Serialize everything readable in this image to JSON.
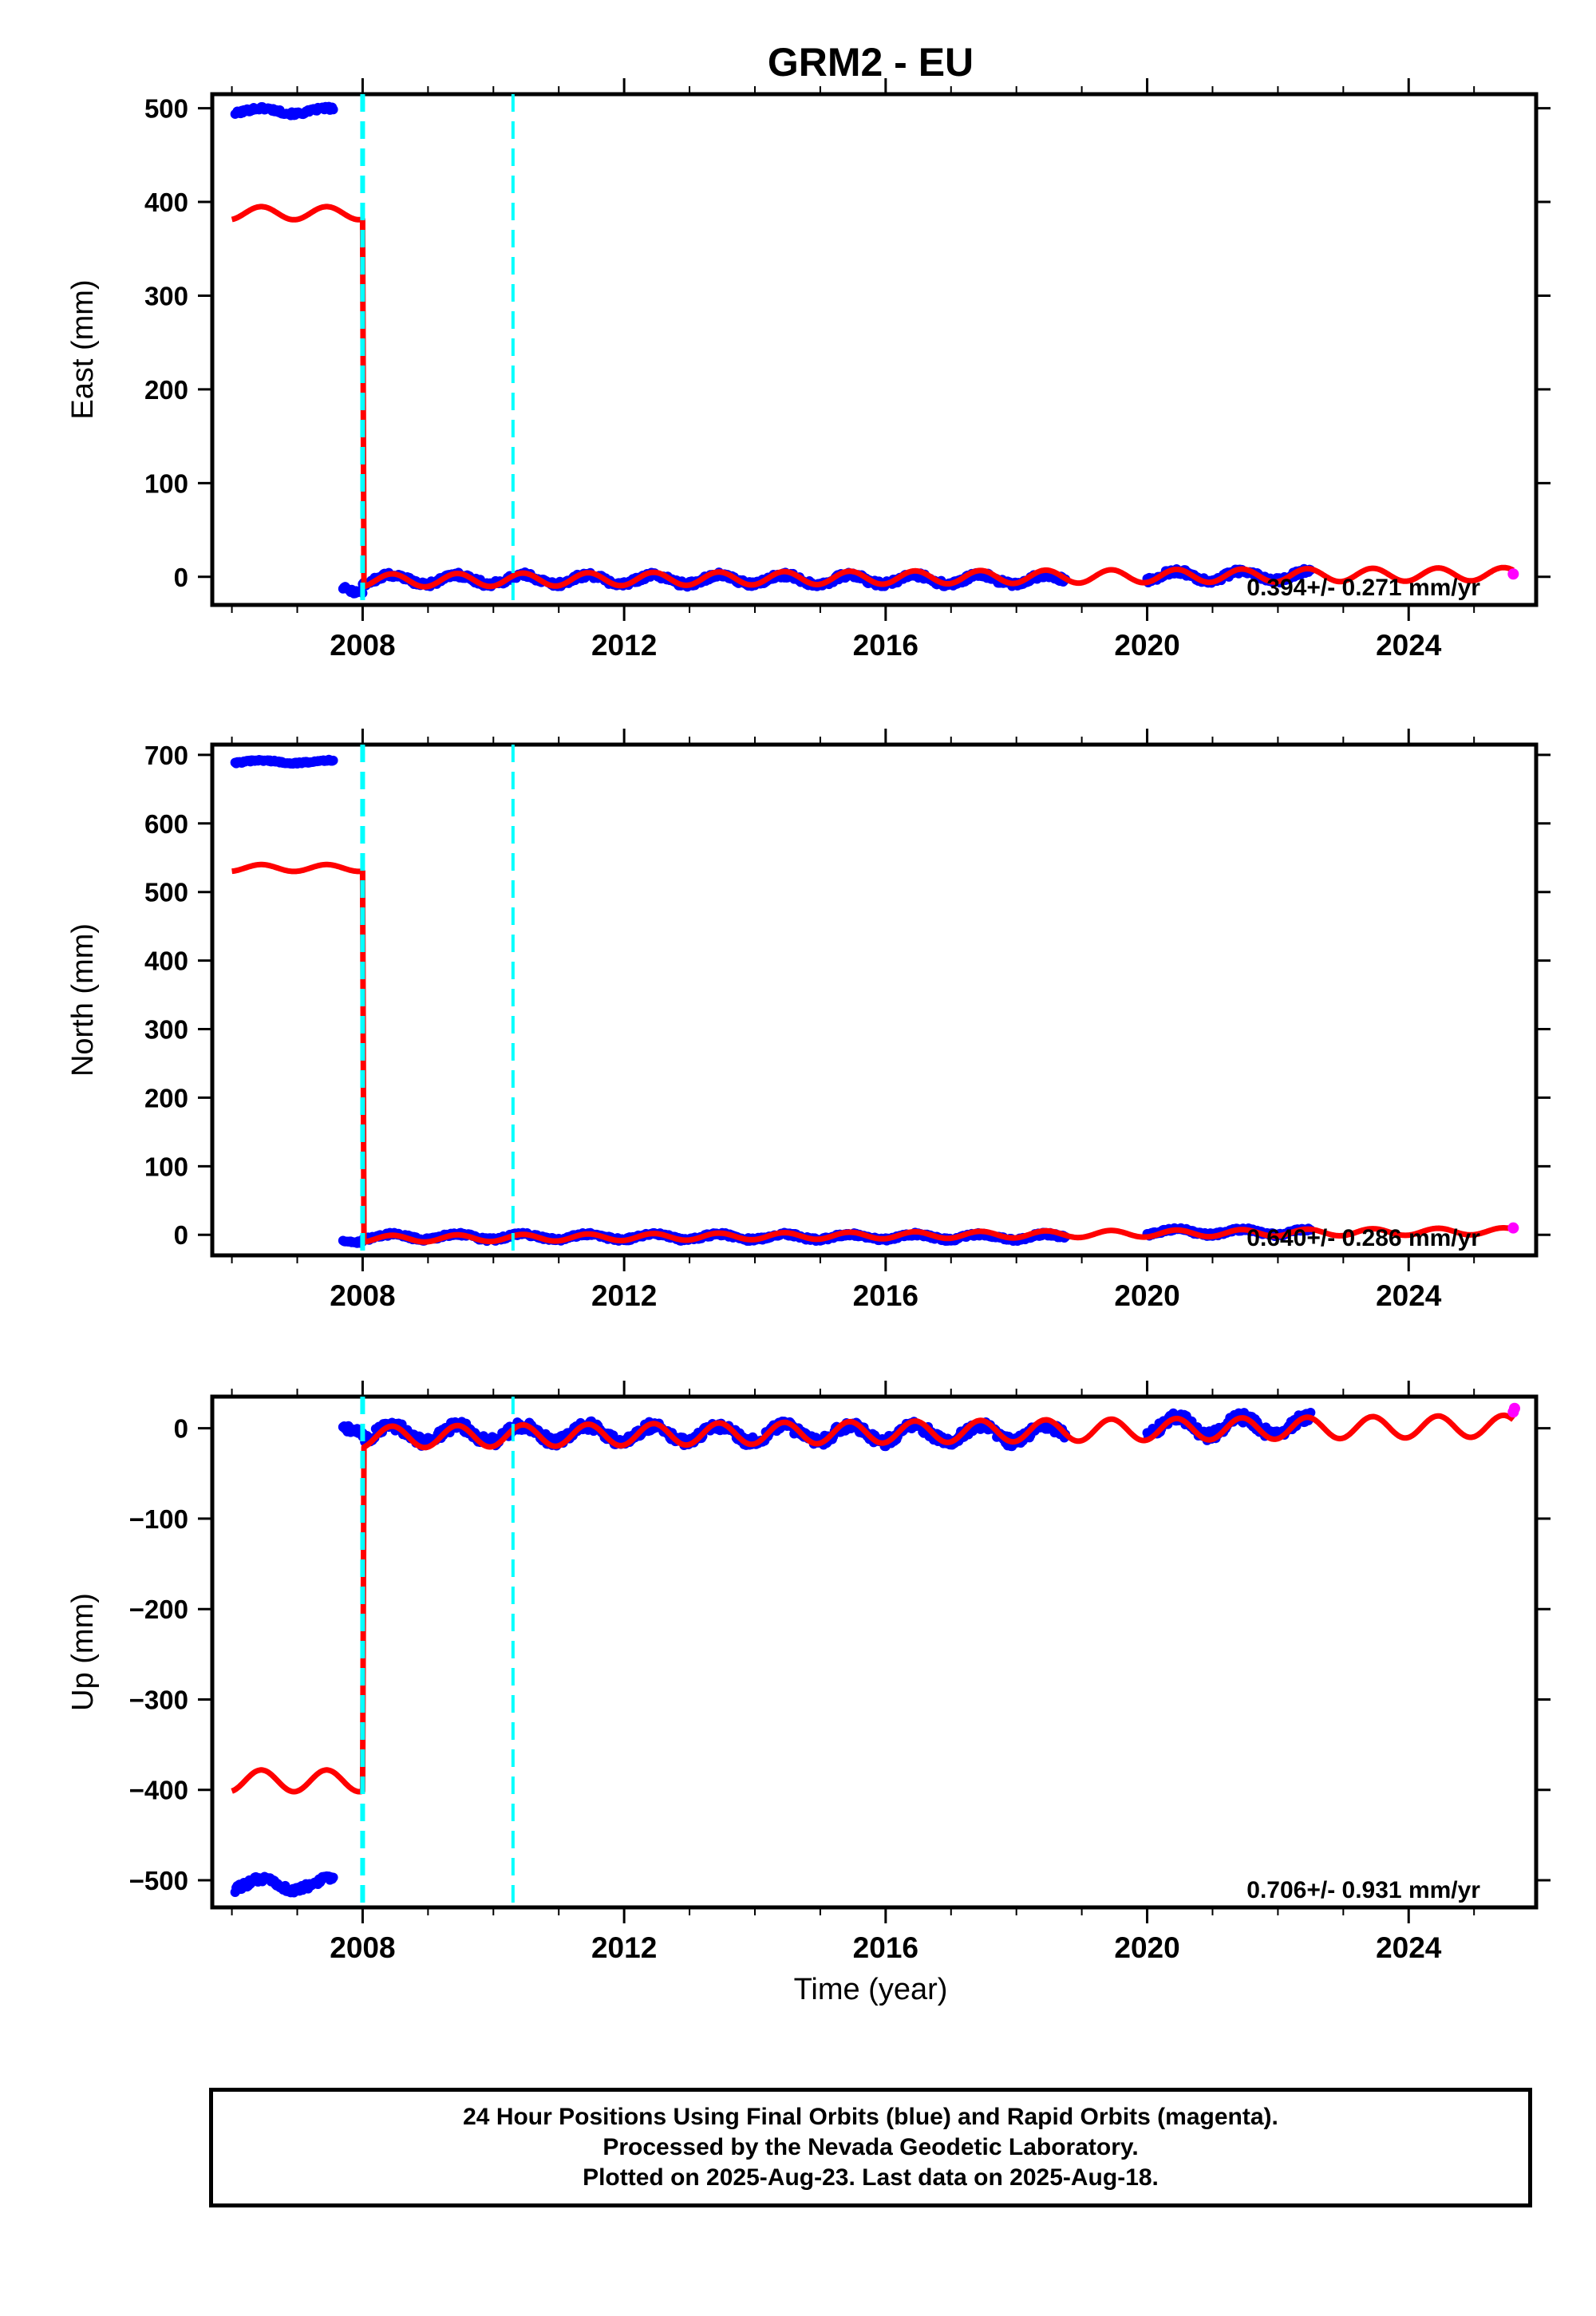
{
  "title": "GRM2 - EU",
  "xlabel": "Time (year)",
  "footer": {
    "line1": "24 Hour Positions Using Final Orbits (blue) and Rapid Orbits (magenta).",
    "line2": "Processed by the Nevada Geodetic Laboratory.",
    "line3": "Plotted on 2025-Aug-23. Last data on 2025-Aug-18."
  },
  "colors": {
    "final_orbits": "#0000ff",
    "rapid_orbits": "#ff00ff",
    "model": "#ff0000",
    "equipment_change": "#00ffff"
  },
  "chart_data": [
    {
      "type": "scatter",
      "component": "East",
      "ylabel": "East (mm)",
      "xlim": [
        2005.7,
        2025.95
      ],
      "ylim": [
        -30,
        515
      ],
      "xticks": [
        2008,
        2012,
        2016,
        2020,
        2024
      ],
      "xtick_labels": [
        "2008",
        "2012",
        "2016",
        "2020",
        "2024"
      ],
      "yticks": [
        0,
        100,
        200,
        300,
        400,
        500
      ],
      "ytick_labels": [
        "0",
        "100",
        "200",
        "300",
        "400",
        "500"
      ],
      "rate_text": "0.394+/- 0.271 mm/yr",
      "offset_lines": [
        2008.0,
        2010.3
      ],
      "segments": [
        {
          "x0": 2006.05,
          "x1": 2007.55,
          "level": 497,
          "amp": 3
        },
        {
          "x0": 2007.7,
          "x1": 2008.0,
          "level": -12,
          "amp": 4
        },
        {
          "x0": 2008.0,
          "x1": 2018.75,
          "level": -3,
          "amp": 5
        },
        {
          "x0": 2020.0,
          "x1": 2022.5,
          "level": 1,
          "amp": 5
        }
      ],
      "model": {
        "offset_before": 388,
        "offset_after": -4,
        "rate": 0.394,
        "amp": 7,
        "step_year": 2008.0
      },
      "rapid_points": [
        [
          2025.6,
          3
        ]
      ]
    },
    {
      "type": "scatter",
      "component": "North",
      "ylabel": "North (mm)",
      "xlim": [
        2005.7,
        2025.95
      ],
      "ylim": [
        -30,
        715
      ],
      "xticks": [
        2008,
        2012,
        2016,
        2020,
        2024
      ],
      "xtick_labels": [
        "2008",
        "2012",
        "2016",
        "2020",
        "2024"
      ],
      "yticks": [
        0,
        100,
        200,
        300,
        400,
        500,
        600,
        700
      ],
      "ytick_labels": [
        "0",
        "100",
        "200",
        "300",
        "400",
        "500",
        "600",
        "700"
      ],
      "rate_text": "0.640+/- 0.286 mm/yr",
      "offset_lines": [
        2008.0,
        2010.3
      ],
      "segments": [
        {
          "x0": 2006.05,
          "x1": 2007.55,
          "level": 690,
          "amp": 2
        },
        {
          "x0": 2007.7,
          "x1": 2008.0,
          "level": -8,
          "amp": 3
        },
        {
          "x0": 2008.0,
          "x1": 2018.75,
          "level": -3,
          "amp": 4
        },
        {
          "x0": 2020.0,
          "x1": 2022.5,
          "level": 4,
          "amp": 4
        }
      ],
      "model": {
        "offset_before": 535,
        "offset_after": -6,
        "rate": 0.64,
        "amp": 5,
        "step_year": 2008.0
      },
      "rapid_points": [
        [
          2025.6,
          10
        ]
      ]
    },
    {
      "type": "scatter",
      "component": "Up",
      "ylabel": "Up (mm)",
      "xlim": [
        2005.7,
        2025.95
      ],
      "ylim": [
        -530,
        35
      ],
      "xticks": [
        2008,
        2012,
        2016,
        2020,
        2024
      ],
      "xtick_labels": [
        "2008",
        "2012",
        "2016",
        "2020",
        "2024"
      ],
      "yticks": [
        -500,
        -400,
        -300,
        -200,
        -100,
        0
      ],
      "ytick_labels": [
        "−500",
        "−400",
        "−300",
        "−200",
        "−100",
        "0"
      ],
      "rate_text": "0.706+/- 0.931 mm/yr",
      "offset_lines": [
        2008.0,
        2010.3
      ],
      "segments": [
        {
          "x0": 2006.05,
          "x1": 2007.55,
          "level": -505,
          "amp": 6
        },
        {
          "x0": 2007.7,
          "x1": 2008.0,
          "level": 2,
          "amp": 6
        },
        {
          "x0": 2008.0,
          "x1": 2018.75,
          "level": -6,
          "amp": 9
        },
        {
          "x0": 2020.0,
          "x1": 2022.5,
          "level": 2,
          "amp": 10
        }
      ],
      "model": {
        "offset_before": -390,
        "offset_after": -10,
        "rate": 0.706,
        "amp": 12,
        "step_year": 2008.0
      },
      "rapid_points": [
        [
          2025.6,
          18
        ],
        [
          2025.62,
          22
        ]
      ]
    }
  ]
}
